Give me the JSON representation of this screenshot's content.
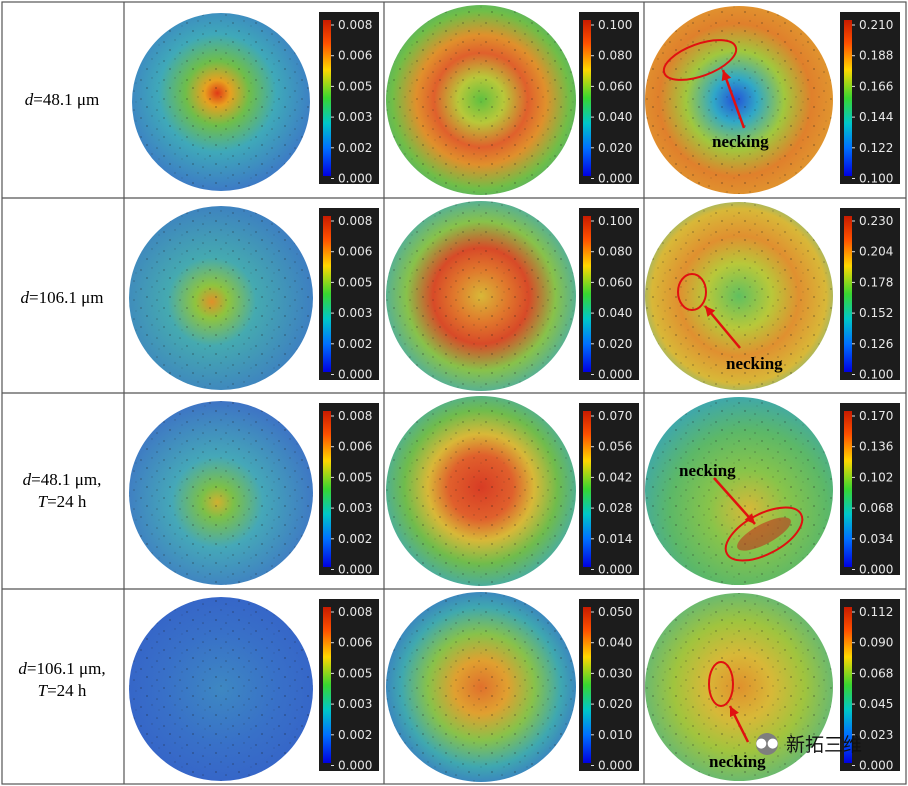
{
  "figure": {
    "rows": [
      {
        "label_html": "<i>d</i>=48.1 μm",
        "label_text": "d=48.1 μm",
        "colorbars": [
          [
            "0.008",
            "0.006",
            "0.005",
            "0.003",
            "0.002",
            "0.000"
          ],
          [
            "0.100",
            "0.080",
            "0.060",
            "0.040",
            "0.020",
            "0.000"
          ],
          [
            "0.210",
            "0.188",
            "0.166",
            "0.144",
            "0.122",
            "0.100"
          ]
        ],
        "necking_label": "necking"
      },
      {
        "label_html": "<i>d</i>=106.1 μm",
        "label_text": "d=106.1 μm",
        "colorbars": [
          [
            "0.008",
            "0.006",
            "0.005",
            "0.003",
            "0.002",
            "0.000"
          ],
          [
            "0.100",
            "0.080",
            "0.060",
            "0.040",
            "0.020",
            "0.000"
          ],
          [
            "0.230",
            "0.204",
            "0.178",
            "0.152",
            "0.126",
            "0.100"
          ]
        ],
        "necking_label": "necking"
      },
      {
        "label_html": "<i>d</i>=48.1 μm,<br><i>T</i>=24 h",
        "label_text": "d=48.1 μm, T=24 h",
        "colorbars": [
          [
            "0.008",
            "0.006",
            "0.005",
            "0.003",
            "0.002",
            "0.000"
          ],
          [
            "0.070",
            "0.056",
            "0.042",
            "0.028",
            "0.014",
            "0.000"
          ],
          [
            "0.170",
            "0.136",
            "0.102",
            "0.068",
            "0.034",
            "0.000"
          ]
        ],
        "necking_label": "necking"
      },
      {
        "label_html": "<i>d</i>=106.1 μm,<br><i>T</i>=24 h",
        "label_text": "d=106.1 μm, T=24 h",
        "colorbars": [
          [
            "0.008",
            "0.006",
            "0.005",
            "0.003",
            "0.002",
            "0.000"
          ],
          [
            "0.050",
            "0.040",
            "0.030",
            "0.020",
            "0.010",
            "0.000"
          ],
          [
            "0.112",
            "0.090",
            "0.068",
            "0.045",
            "0.023",
            "0.000"
          ]
        ],
        "necking_label": "necking"
      }
    ]
  },
  "watermark": {
    "text": "新拓三维",
    "icon": "wechat-icon"
  },
  "colors": {
    "red_annotation": "#e01010",
    "border": "#555555",
    "bar_bg": "#1c1c1c"
  }
}
